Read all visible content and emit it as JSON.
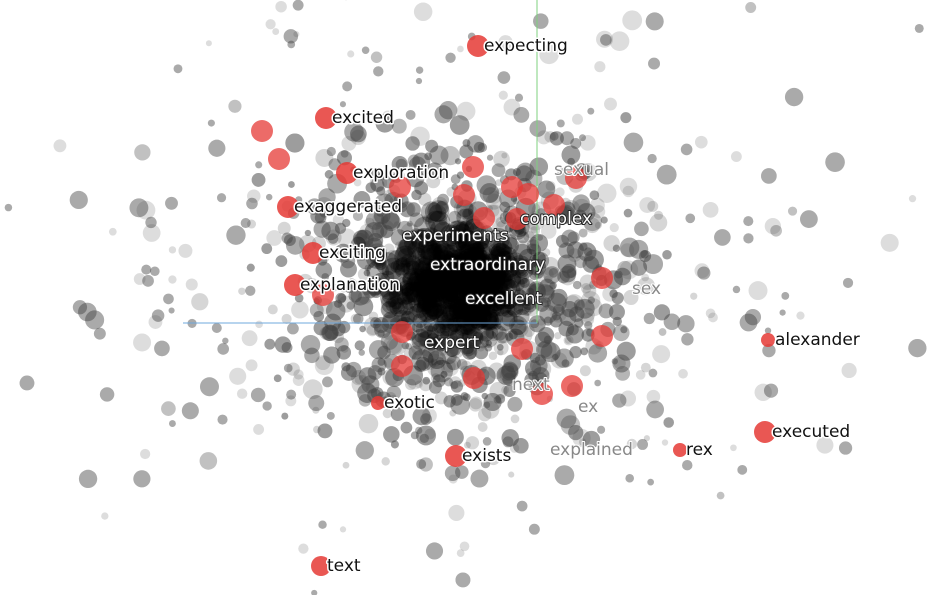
{
  "labels": [
    "expecting",
    "excited",
    "exploration",
    "exaggerated",
    "exciting",
    "explanation",
    "experiments",
    "extraordinary",
    "excellent",
    "complex",
    "expert",
    "exotic",
    "exists",
    "sexual",
    "sex",
    "next",
    "ex",
    "explained",
    "alexander",
    "executed",
    "rex",
    "text"
  ]
}
